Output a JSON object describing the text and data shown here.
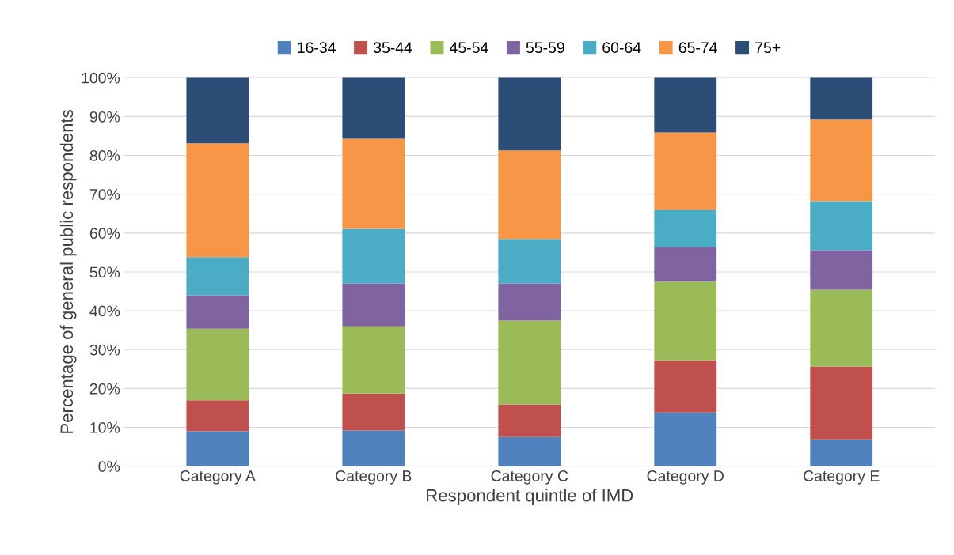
{
  "chart_data": {
    "type": "bar",
    "stacked": true,
    "xlabel": "Respondent quintle of IMD",
    "ylabel": "Percentage of general public respondents",
    "categories": [
      "Category A",
      "Category B",
      "Category C",
      "Category D",
      "Category E"
    ],
    "series": [
      {
        "name": "16-34",
        "color": "#4f81bd",
        "values": [
          9.0,
          9.2,
          7.5,
          13.8,
          6.9
        ]
      },
      {
        "name": "35-44",
        "color": "#c0504d",
        "values": [
          8.0,
          9.5,
          8.4,
          13.5,
          18.8
        ]
      },
      {
        "name": "45-54",
        "color": "#9bbb59",
        "values": [
          18.4,
          17.3,
          21.6,
          20.2,
          19.7
        ]
      },
      {
        "name": "55-59",
        "color": "#8064a2",
        "values": [
          8.6,
          11.0,
          9.5,
          8.9,
          10.2
        ]
      },
      {
        "name": "60-64",
        "color": "#4bacc6",
        "values": [
          9.8,
          14.1,
          11.5,
          9.6,
          12.6
        ]
      },
      {
        "name": "65-74",
        "color": "#f79646",
        "values": [
          29.3,
          23.2,
          22.8,
          19.9,
          21.0
        ]
      },
      {
        "name": "75+",
        "color": "#2c4d75",
        "values": [
          16.9,
          15.7,
          18.7,
          14.1,
          10.8
        ]
      }
    ],
    "ylim": [
      0,
      100
    ],
    "yticks": [
      {
        "value": 0,
        "label": "0%"
      },
      {
        "value": 10,
        "label": "10%"
      },
      {
        "value": 20,
        "label": "20%"
      },
      {
        "value": 30,
        "label": "30%"
      },
      {
        "value": 40,
        "label": "40%"
      },
      {
        "value": 50,
        "label": "50%"
      },
      {
        "value": 60,
        "label": "60%"
      },
      {
        "value": 70,
        "label": "70%"
      },
      {
        "value": 80,
        "label": "80%"
      },
      {
        "value": 90,
        "label": "90%"
      },
      {
        "value": 100,
        "label": "100%"
      }
    ],
    "grid": "y",
    "legend": "top"
  }
}
